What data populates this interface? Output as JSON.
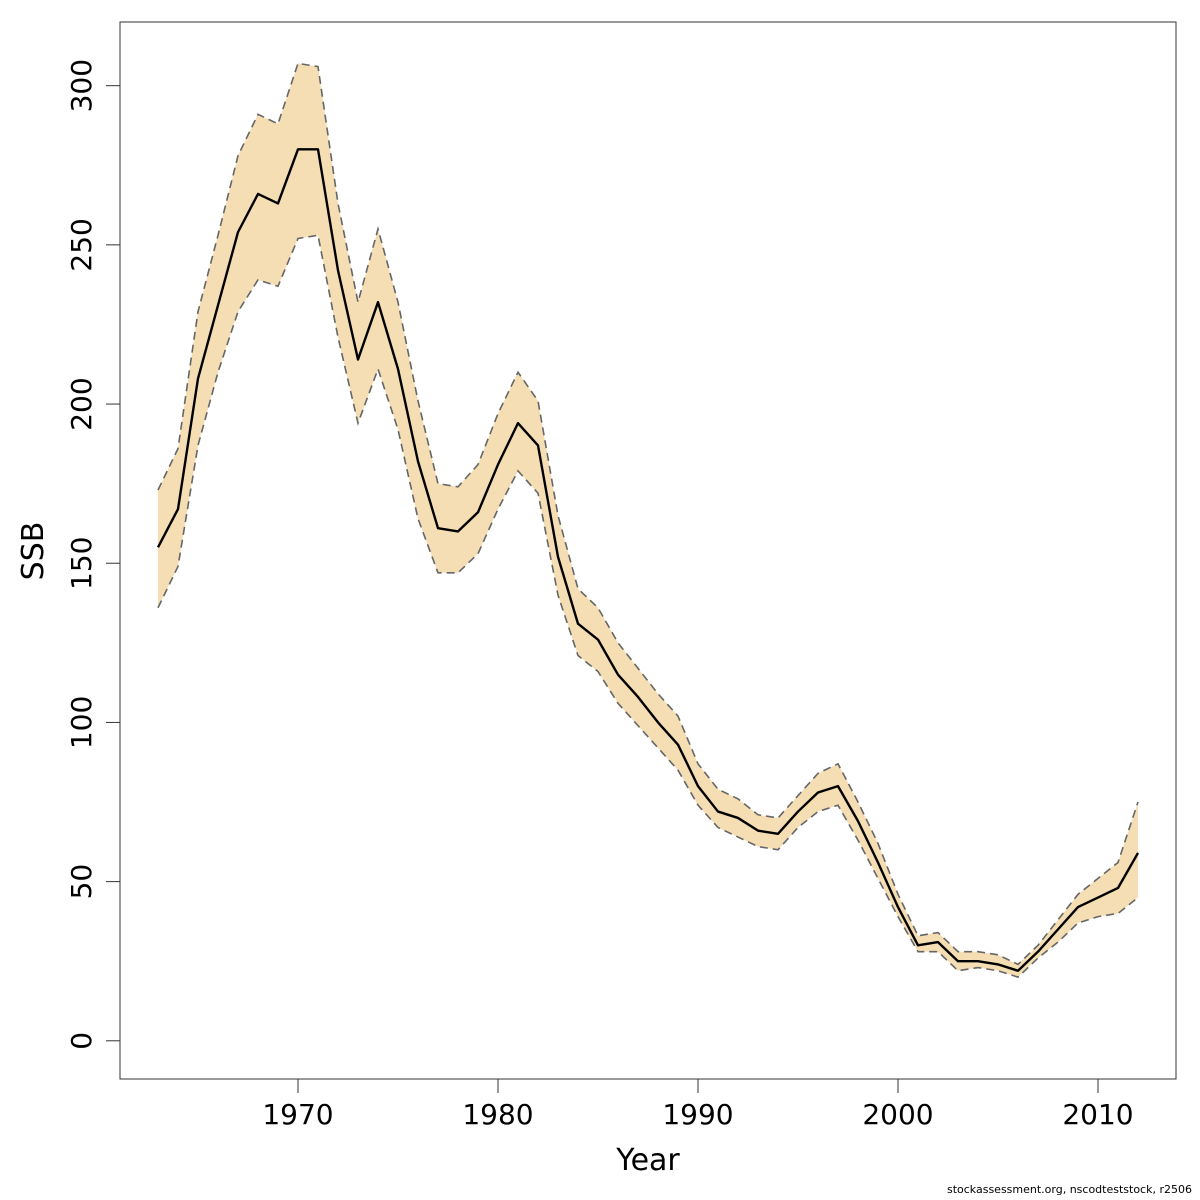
{
  "chart_data": {
    "type": "area",
    "title": "",
    "xlabel": "Year",
    "ylabel": "SSB",
    "xlim": [
      1961.1,
      2013.9
    ],
    "ylim": [
      -12,
      320
    ],
    "x_ticks": [
      1970,
      1980,
      1990,
      2000,
      2010
    ],
    "y_ticks": [
      0,
      50,
      100,
      150,
      200,
      250,
      300
    ],
    "grid": false,
    "legend": "none",
    "colors": {
      "band": "#f5deb3",
      "estimate": "#000000",
      "bounds": "#666666",
      "frame": "#333333"
    },
    "x": [
      1963,
      1964,
      1965,
      1966,
      1967,
      1968,
      1969,
      1970,
      1971,
      1972,
      1973,
      1974,
      1975,
      1976,
      1977,
      1978,
      1979,
      1980,
      1981,
      1982,
      1983,
      1984,
      1985,
      1986,
      1987,
      1988,
      1989,
      1990,
      1991,
      1992,
      1993,
      1994,
      1995,
      1996,
      1997,
      1998,
      1999,
      2000,
      2001,
      2002,
      2003,
      2004,
      2005,
      2006,
      2007,
      2008,
      2009,
      2010,
      2011,
      2012
    ],
    "series": [
      {
        "role": "estimate",
        "values": [
          155,
          167,
          208,
          231,
          254,
          266,
          263,
          280,
          280,
          242,
          214,
          232,
          211,
          182,
          161,
          160,
          166,
          181,
          194,
          187,
          152,
          131,
          126,
          115,
          108,
          100,
          93,
          80,
          72,
          70,
          66,
          65,
          72,
          78,
          80,
          69,
          56,
          42,
          30,
          31,
          25,
          25,
          24,
          22,
          28,
          35,
          42,
          45,
          48,
          59
        ]
      },
      {
        "role": "upper",
        "values": [
          173,
          186,
          229,
          253,
          278,
          291,
          288,
          307,
          306,
          263,
          232,
          255,
          232,
          201,
          175,
          174,
          181,
          197,
          210,
          201,
          165,
          142,
          136,
          125,
          117,
          109,
          102,
          87,
          79,
          76,
          71,
          70,
          77,
          84,
          87,
          75,
          62,
          46,
          33,
          34,
          28,
          28,
          27,
          24,
          30,
          38,
          46,
          51,
          56,
          75
        ]
      },
      {
        "role": "lower",
        "values": [
          136,
          149,
          187,
          210,
          229,
          239,
          237,
          252,
          253,
          221,
          194,
          211,
          192,
          164,
          147,
          147,
          153,
          167,
          179,
          172,
          140,
          121,
          116,
          106,
          99,
          92,
          85,
          74,
          67,
          64,
          61,
          60,
          67,
          72,
          74,
          63,
          51,
          39,
          28,
          28,
          22,
          23,
          22,
          20,
          26,
          31,
          37,
          39,
          40,
          45
        ]
      }
    ]
  },
  "footer": {
    "text": "stockassessment.org, nscodteststock, r2506"
  }
}
